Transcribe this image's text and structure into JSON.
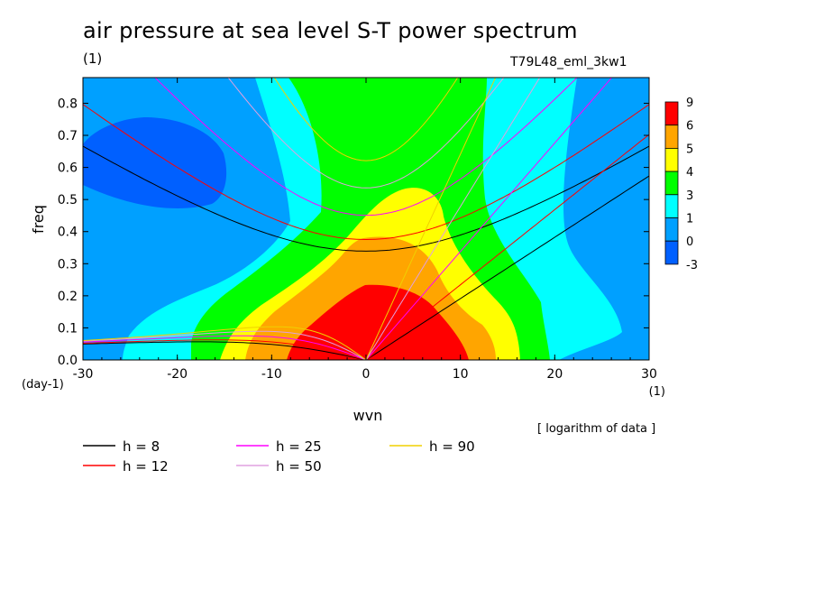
{
  "chart_data": {
    "type": "heatmap",
    "title": "air pressure at sea level S-T power spectrum",
    "title_unit": "(1)",
    "run_label": "T79L48_eml_3kw1",
    "note": "[ logarithm of data ]",
    "xlabel": "wvn",
    "x_unit": "(1)",
    "ylabel": "freq",
    "y_unit": "(day-1)",
    "xlim": [
      -30,
      30
    ],
    "ylim": [
      0,
      0.88
    ],
    "x_ticks": [
      "-30",
      "-20",
      "-10",
      "0",
      "10",
      "20",
      "30"
    ],
    "x_tick_values": [
      -30,
      -20,
      -10,
      0,
      10,
      20,
      30
    ],
    "y_ticks": [
      "0.0",
      "0.1",
      "0.2",
      "0.3",
      "0.4",
      "0.5",
      "0.6",
      "0.7",
      "0.8"
    ],
    "y_tick_values": [
      0,
      0.1,
      0.2,
      0.3,
      0.4,
      0.5,
      0.6,
      0.7,
      0.8
    ],
    "colorbar": {
      "labels": [
        "9",
        "6",
        "5",
        "4",
        "3",
        "1",
        "0",
        "-3"
      ],
      "colors": [
        "#ff0000",
        "#ffa500",
        "#ffff00",
        "#00ff00",
        "#00ffff",
        "#00a0ff",
        "#0060ff"
      ]
    },
    "dispersion_curves": [
      {
        "name": "h =  8",
        "color": "#000000"
      },
      {
        "name": "h = 12",
        "color": "#ff0000"
      },
      {
        "name": "h = 25",
        "color": "#ff00ff"
      },
      {
        "name": "h = 50",
        "color": "#e0a0e0"
      },
      {
        "name": "h = 90",
        "color": "#f0d000"
      }
    ]
  }
}
